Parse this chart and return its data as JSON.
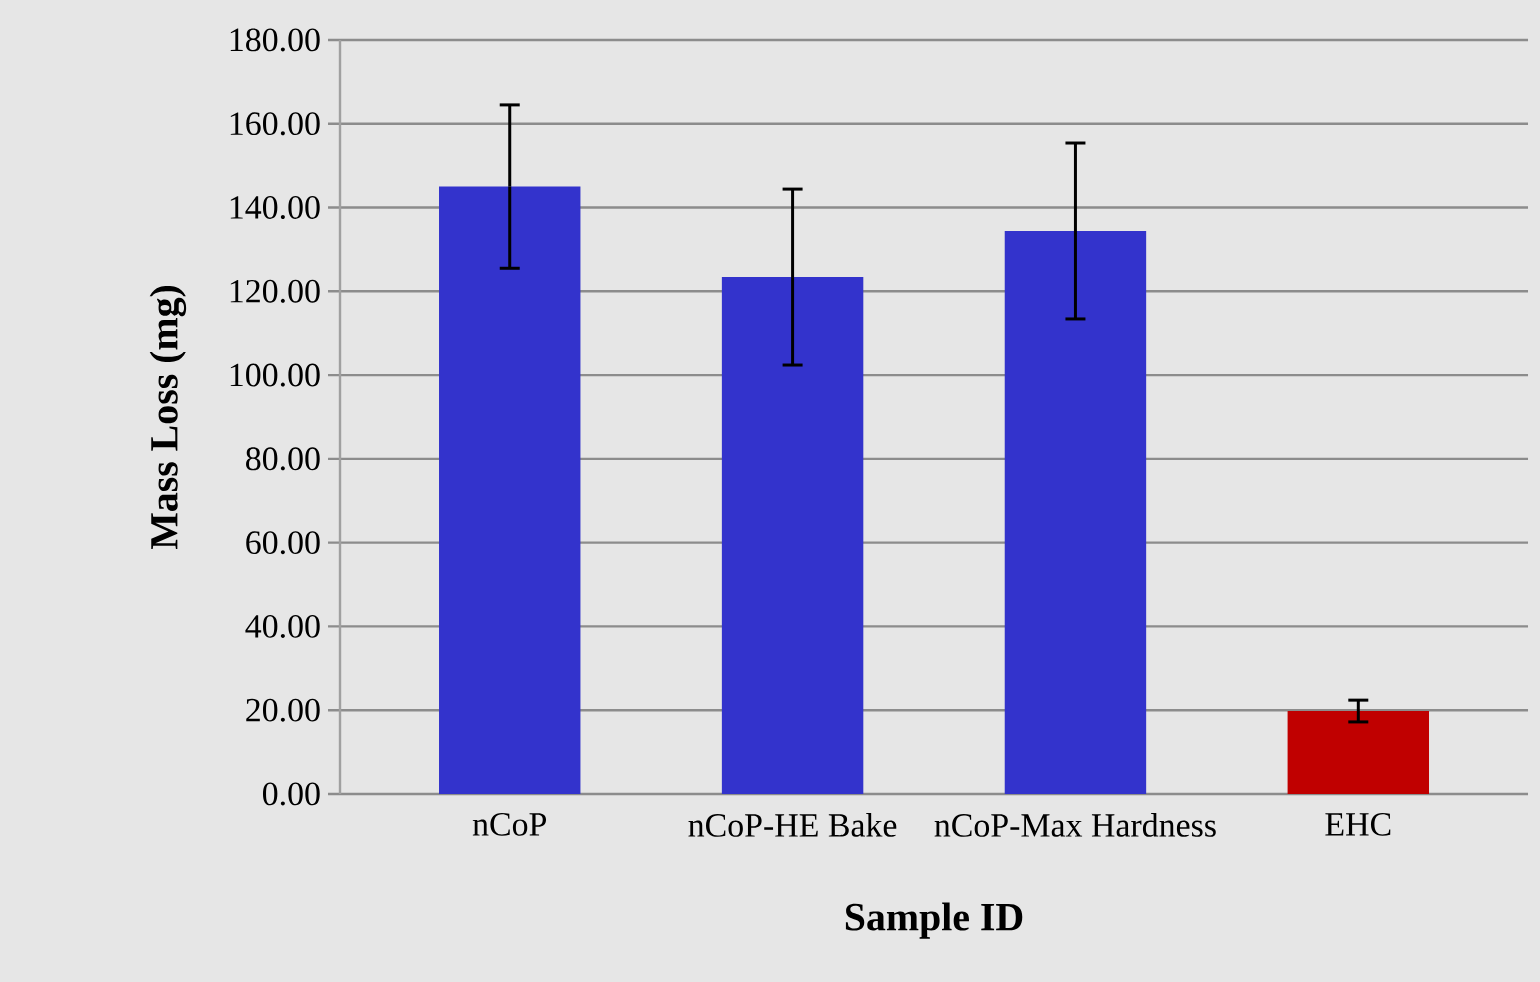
{
  "chart_data": {
    "type": "bar",
    "categories": [
      "nCoP",
      "nCoP-HE Bake",
      "nCoP-Max Hardness",
      "EHC"
    ],
    "values": [
      145,
      123.4,
      134.4,
      19.8
    ],
    "errors": [
      19.5,
      21,
      21,
      2.6
    ],
    "colors": [
      "#3333cc",
      "#3333cc",
      "#3333cc",
      "#c00000"
    ],
    "xlabel": "Sample ID",
    "ylabel": "Mass Loss (mg)",
    "ylim": [
      0,
      180
    ],
    "yticks": [
      {
        "value": 0,
        "label": "0.00"
      },
      {
        "value": 20,
        "label": "20.00"
      },
      {
        "value": 40,
        "label": "40.00"
      },
      {
        "value": 60,
        "label": "60.00"
      },
      {
        "value": 80,
        "label": "80.00"
      },
      {
        "value": 100,
        "label": "100.00"
      },
      {
        "value": 120,
        "label": "120.00"
      },
      {
        "value": 140,
        "label": "140.00"
      },
      {
        "value": 160,
        "label": "160.00"
      },
      {
        "value": 180,
        "label": "180.00"
      }
    ],
    "grid": "y"
  }
}
